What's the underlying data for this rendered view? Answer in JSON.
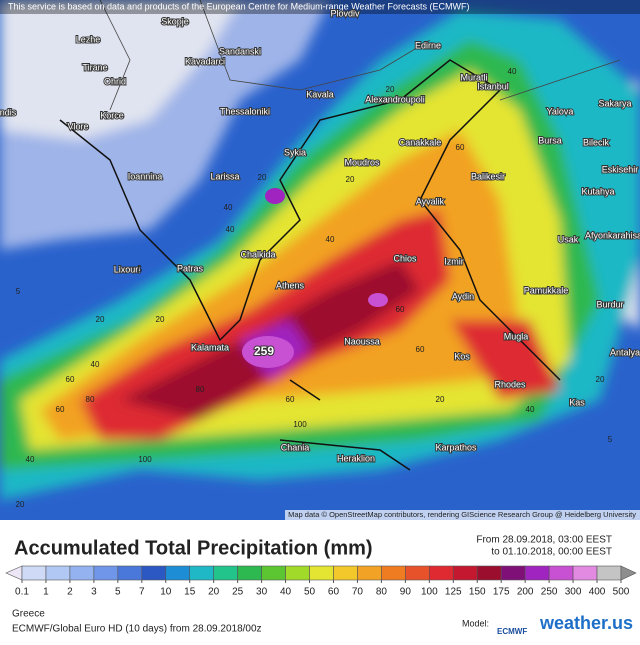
{
  "header": {
    "notice": "This service is based on data and products of the European Centre for Medium-range Weather Forecasts (ECMWF)"
  },
  "map": {
    "max_label": "259",
    "attribution": "Map data © OpenStreetMap contributors, rendering GIScience Research Group @ Heidelberg University",
    "cities": [
      "Skopje",
      "Plovdiv",
      "Edirne",
      "Sandanski",
      "Lezhe",
      "Tirane",
      "Kavadarci",
      "Ohrid",
      "Kavala",
      "Alexandroupoli",
      "Muratli",
      "Istanbul",
      "Yalova",
      "Sakarya",
      "Korce",
      "Thessaloniki",
      "Vlore",
      "Bursa",
      "Bilecik",
      "Sykia",
      "Moudros",
      "Canakkale",
      "Balikesir",
      "Eskisehir",
      "Ioannina",
      "Larissa",
      "Kutahya",
      "Ayvalik",
      "Usak",
      "Afyonkarahisar",
      "Lixouri",
      "Patras",
      "Chalkida",
      "Chios",
      "Izmir",
      "Athens",
      "Aydin",
      "Pamukkale",
      "Burdur",
      "Kalamata",
      "Naoussa",
      "Mugla",
      "Kos",
      "Antalya",
      "Rhodes",
      "Kas",
      "Karpathos",
      "Chania",
      "Heraklion",
      "ndis"
    ],
    "contours": [
      "40",
      "20",
      "60",
      "20",
      "40",
      "5",
      "5",
      "20",
      "40",
      "60",
      "80",
      "100",
      "60",
      "40",
      "20",
      "60",
      "80",
      "20",
      "40",
      "60",
      "20",
      "40",
      "20",
      "5",
      "60",
      "40",
      "20",
      "100"
    ]
  },
  "legend": {
    "title": "Accumulated Total Precipitation (mm)",
    "from": "From 28.09.2018, 03:00 EEST",
    "to": "to 01.10.2018, 00:00 EEST",
    "ticks": [
      0.1,
      1,
      2,
      3,
      5,
      7,
      10,
      15,
      20,
      25,
      30,
      40,
      50,
      60,
      70,
      80,
      90,
      100,
      125,
      150,
      175,
      200,
      250,
      300,
      400,
      500
    ],
    "colors": [
      "#ece6f6",
      "#cfdaf6",
      "#b2c8f4",
      "#94b2ef",
      "#6f96e8",
      "#4a78da",
      "#2c58c4",
      "#1d8ed6",
      "#1fb8c6",
      "#22c48c",
      "#2db850",
      "#5cc632",
      "#a2da2a",
      "#e4e432",
      "#f2c82a",
      "#f2a224",
      "#f07c22",
      "#e8522a",
      "#de2a30",
      "#c41830",
      "#9c0e2e",
      "#7e1078",
      "#a024c0",
      "#c850d2",
      "#e28ae2",
      "#c4c4c4",
      "#8e8e8e"
    ]
  },
  "footer": {
    "region": "Greece",
    "model": "ECMWF/Global Euro HD (10 days) from 28.09.2018/00z",
    "model_label": "Model:",
    "ecmwf": "ECMWF",
    "brand": "weather.us"
  }
}
